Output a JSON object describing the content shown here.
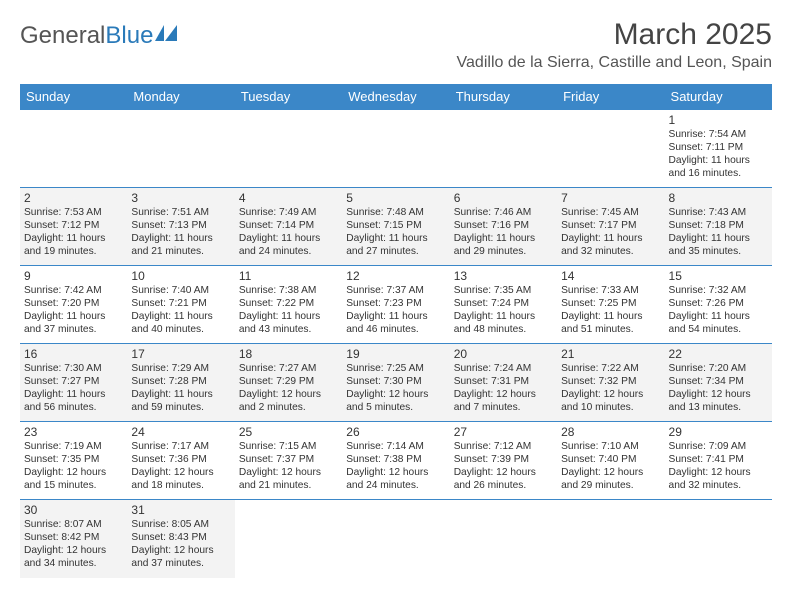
{
  "branding": {
    "logo_part1": "General",
    "logo_part2": "Blue"
  },
  "header": {
    "month_title": "March 2025",
    "location": "Vadillo de la Sierra, Castille and Leon, Spain"
  },
  "colors": {
    "header_bg": "#3b87c8",
    "header_text": "#ffffff",
    "cell_border": "#3b87c8",
    "shade_bg": "#f3f3f3",
    "text": "#333333"
  },
  "weekdays": [
    "Sunday",
    "Monday",
    "Tuesday",
    "Wednesday",
    "Thursday",
    "Friday",
    "Saturday"
  ],
  "weeks": [
    [
      {
        "day": "",
        "sunrise": "",
        "sunset": "",
        "daylight": "",
        "shade": false
      },
      {
        "day": "",
        "sunrise": "",
        "sunset": "",
        "daylight": "",
        "shade": false
      },
      {
        "day": "",
        "sunrise": "",
        "sunset": "",
        "daylight": "",
        "shade": false
      },
      {
        "day": "",
        "sunrise": "",
        "sunset": "",
        "daylight": "",
        "shade": false
      },
      {
        "day": "",
        "sunrise": "",
        "sunset": "",
        "daylight": "",
        "shade": false
      },
      {
        "day": "",
        "sunrise": "",
        "sunset": "",
        "daylight": "",
        "shade": false
      },
      {
        "day": "1",
        "sunrise": "Sunrise: 7:54 AM",
        "sunset": "Sunset: 7:11 PM",
        "daylight": "Daylight: 11 hours and 16 minutes.",
        "shade": false
      }
    ],
    [
      {
        "day": "2",
        "sunrise": "Sunrise: 7:53 AM",
        "sunset": "Sunset: 7:12 PM",
        "daylight": "Daylight: 11 hours and 19 minutes.",
        "shade": true
      },
      {
        "day": "3",
        "sunrise": "Sunrise: 7:51 AM",
        "sunset": "Sunset: 7:13 PM",
        "daylight": "Daylight: 11 hours and 21 minutes.",
        "shade": true
      },
      {
        "day": "4",
        "sunrise": "Sunrise: 7:49 AM",
        "sunset": "Sunset: 7:14 PM",
        "daylight": "Daylight: 11 hours and 24 minutes.",
        "shade": true
      },
      {
        "day": "5",
        "sunrise": "Sunrise: 7:48 AM",
        "sunset": "Sunset: 7:15 PM",
        "daylight": "Daylight: 11 hours and 27 minutes.",
        "shade": true
      },
      {
        "day": "6",
        "sunrise": "Sunrise: 7:46 AM",
        "sunset": "Sunset: 7:16 PM",
        "daylight": "Daylight: 11 hours and 29 minutes.",
        "shade": true
      },
      {
        "day": "7",
        "sunrise": "Sunrise: 7:45 AM",
        "sunset": "Sunset: 7:17 PM",
        "daylight": "Daylight: 11 hours and 32 minutes.",
        "shade": true
      },
      {
        "day": "8",
        "sunrise": "Sunrise: 7:43 AM",
        "sunset": "Sunset: 7:18 PM",
        "daylight": "Daylight: 11 hours and 35 minutes.",
        "shade": true
      }
    ],
    [
      {
        "day": "9",
        "sunrise": "Sunrise: 7:42 AM",
        "sunset": "Sunset: 7:20 PM",
        "daylight": "Daylight: 11 hours and 37 minutes.",
        "shade": false
      },
      {
        "day": "10",
        "sunrise": "Sunrise: 7:40 AM",
        "sunset": "Sunset: 7:21 PM",
        "daylight": "Daylight: 11 hours and 40 minutes.",
        "shade": false
      },
      {
        "day": "11",
        "sunrise": "Sunrise: 7:38 AM",
        "sunset": "Sunset: 7:22 PM",
        "daylight": "Daylight: 11 hours and 43 minutes.",
        "shade": false
      },
      {
        "day": "12",
        "sunrise": "Sunrise: 7:37 AM",
        "sunset": "Sunset: 7:23 PM",
        "daylight": "Daylight: 11 hours and 46 minutes.",
        "shade": false
      },
      {
        "day": "13",
        "sunrise": "Sunrise: 7:35 AM",
        "sunset": "Sunset: 7:24 PM",
        "daylight": "Daylight: 11 hours and 48 minutes.",
        "shade": false
      },
      {
        "day": "14",
        "sunrise": "Sunrise: 7:33 AM",
        "sunset": "Sunset: 7:25 PM",
        "daylight": "Daylight: 11 hours and 51 minutes.",
        "shade": false
      },
      {
        "day": "15",
        "sunrise": "Sunrise: 7:32 AM",
        "sunset": "Sunset: 7:26 PM",
        "daylight": "Daylight: 11 hours and 54 minutes.",
        "shade": false
      }
    ],
    [
      {
        "day": "16",
        "sunrise": "Sunrise: 7:30 AM",
        "sunset": "Sunset: 7:27 PM",
        "daylight": "Daylight: 11 hours and 56 minutes.",
        "shade": true
      },
      {
        "day": "17",
        "sunrise": "Sunrise: 7:29 AM",
        "sunset": "Sunset: 7:28 PM",
        "daylight": "Daylight: 11 hours and 59 minutes.",
        "shade": true
      },
      {
        "day": "18",
        "sunrise": "Sunrise: 7:27 AM",
        "sunset": "Sunset: 7:29 PM",
        "daylight": "Daylight: 12 hours and 2 minutes.",
        "shade": true
      },
      {
        "day": "19",
        "sunrise": "Sunrise: 7:25 AM",
        "sunset": "Sunset: 7:30 PM",
        "daylight": "Daylight: 12 hours and 5 minutes.",
        "shade": true
      },
      {
        "day": "20",
        "sunrise": "Sunrise: 7:24 AM",
        "sunset": "Sunset: 7:31 PM",
        "daylight": "Daylight: 12 hours and 7 minutes.",
        "shade": true
      },
      {
        "day": "21",
        "sunrise": "Sunrise: 7:22 AM",
        "sunset": "Sunset: 7:32 PM",
        "daylight": "Daylight: 12 hours and 10 minutes.",
        "shade": true
      },
      {
        "day": "22",
        "sunrise": "Sunrise: 7:20 AM",
        "sunset": "Sunset: 7:34 PM",
        "daylight": "Daylight: 12 hours and 13 minutes.",
        "shade": true
      }
    ],
    [
      {
        "day": "23",
        "sunrise": "Sunrise: 7:19 AM",
        "sunset": "Sunset: 7:35 PM",
        "daylight": "Daylight: 12 hours and 15 minutes.",
        "shade": false
      },
      {
        "day": "24",
        "sunrise": "Sunrise: 7:17 AM",
        "sunset": "Sunset: 7:36 PM",
        "daylight": "Daylight: 12 hours and 18 minutes.",
        "shade": false
      },
      {
        "day": "25",
        "sunrise": "Sunrise: 7:15 AM",
        "sunset": "Sunset: 7:37 PM",
        "daylight": "Daylight: 12 hours and 21 minutes.",
        "shade": false
      },
      {
        "day": "26",
        "sunrise": "Sunrise: 7:14 AM",
        "sunset": "Sunset: 7:38 PM",
        "daylight": "Daylight: 12 hours and 24 minutes.",
        "shade": false
      },
      {
        "day": "27",
        "sunrise": "Sunrise: 7:12 AM",
        "sunset": "Sunset: 7:39 PM",
        "daylight": "Daylight: 12 hours and 26 minutes.",
        "shade": false
      },
      {
        "day": "28",
        "sunrise": "Sunrise: 7:10 AM",
        "sunset": "Sunset: 7:40 PM",
        "daylight": "Daylight: 12 hours and 29 minutes.",
        "shade": false
      },
      {
        "day": "29",
        "sunrise": "Sunrise: 7:09 AM",
        "sunset": "Sunset: 7:41 PM",
        "daylight": "Daylight: 12 hours and 32 minutes.",
        "shade": false
      }
    ],
    [
      {
        "day": "30",
        "sunrise": "Sunrise: 8:07 AM",
        "sunset": "Sunset: 8:42 PM",
        "daylight": "Daylight: 12 hours and 34 minutes.",
        "shade": true
      },
      {
        "day": "31",
        "sunrise": "Sunrise: 8:05 AM",
        "sunset": "Sunset: 8:43 PM",
        "daylight": "Daylight: 12 hours and 37 minutes.",
        "shade": true
      },
      {
        "day": "",
        "sunrise": "",
        "sunset": "",
        "daylight": "",
        "shade": false
      },
      {
        "day": "",
        "sunrise": "",
        "sunset": "",
        "daylight": "",
        "shade": false
      },
      {
        "day": "",
        "sunrise": "",
        "sunset": "",
        "daylight": "",
        "shade": false
      },
      {
        "day": "",
        "sunrise": "",
        "sunset": "",
        "daylight": "",
        "shade": false
      },
      {
        "day": "",
        "sunrise": "",
        "sunset": "",
        "daylight": "",
        "shade": false
      }
    ]
  ]
}
